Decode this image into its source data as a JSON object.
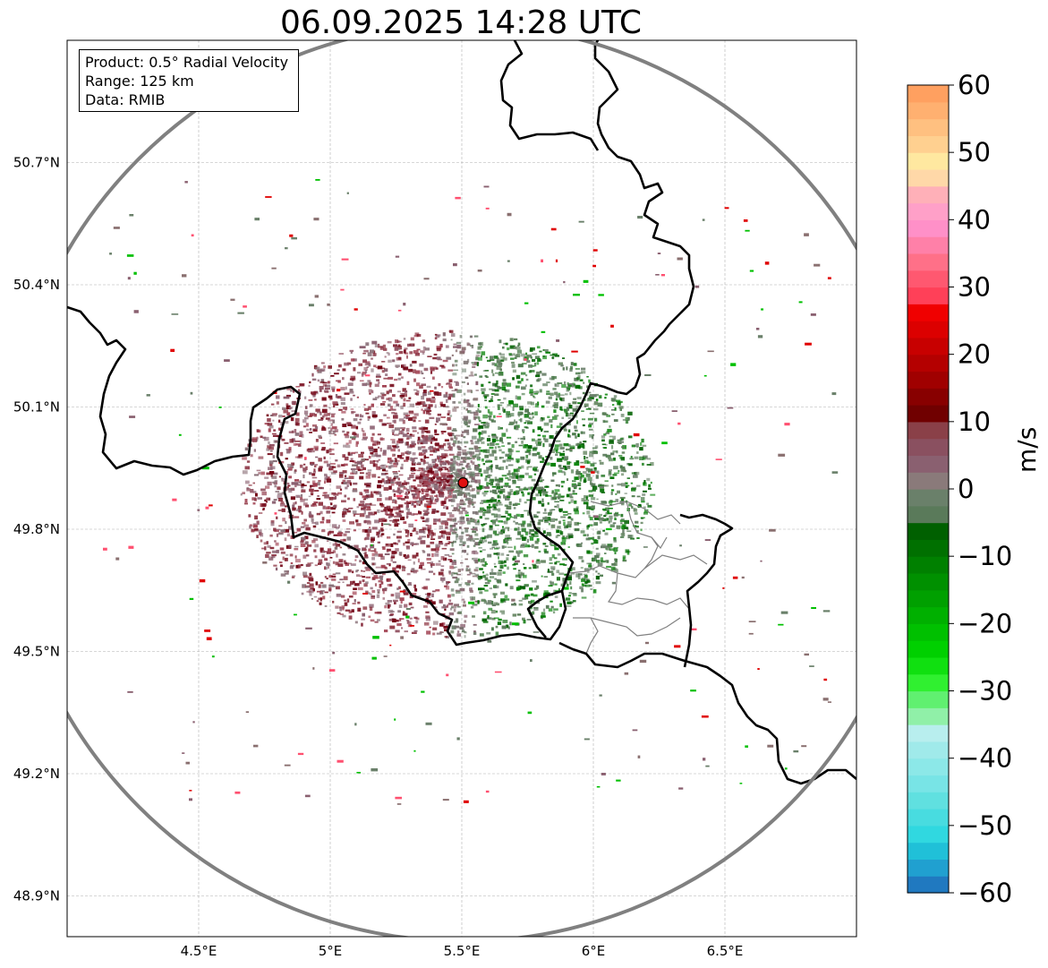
{
  "title": "06.09.2025 14:28 UTC",
  "info": {
    "product": "Product: 0.5° Radial Velocity",
    "range": "Range: 125 km",
    "data": "Data: RMIB"
  },
  "map": {
    "lon_range": [
      4.0,
      7.0
    ],
    "lat_range": [
      48.8,
      51.0
    ],
    "lon_ticks": [
      {
        "value": 4.5,
        "label": "4.5°E"
      },
      {
        "value": 5.0,
        "label": "5°E"
      },
      {
        "value": 5.5,
        "label": "5.5°E"
      },
      {
        "value": 6.0,
        "label": "6°E"
      },
      {
        "value": 6.5,
        "label": "6.5°E"
      }
    ],
    "lat_ticks": [
      {
        "value": 50.7,
        "label": "50.7°N"
      },
      {
        "value": 50.4,
        "label": "50.4°N"
      },
      {
        "value": 50.1,
        "label": "50.1°N"
      },
      {
        "value": 49.8,
        "label": "49.8°N"
      },
      {
        "value": 49.5,
        "label": "49.5°N"
      },
      {
        "value": 49.2,
        "label": "49.2°N"
      },
      {
        "value": 48.9,
        "label": "48.9°N"
      }
    ],
    "radar_site": {
      "lon": 5.505,
      "lat": 49.914
    },
    "range_ring_km": 125,
    "gridlines": true,
    "colors": {
      "ring": "#808080",
      "border": "#000000",
      "admin": "#808080",
      "site": "#e01010"
    }
  },
  "colorbar": {
    "unit": "m/s",
    "min": -60,
    "max": 60,
    "ticks": [
      60,
      50,
      40,
      30,
      20,
      10,
      0,
      -10,
      -20,
      -30,
      -40,
      -50,
      -60
    ],
    "tick_labels": [
      "60",
      "50",
      "40",
      "30",
      "20",
      "10",
      "0",
      "−10",
      "−20",
      "−30",
      "−40",
      "−50",
      "−60"
    ],
    "colors": [
      "#2079c0",
      "#20a0d0",
      "#20c0d8",
      "#30d8e0",
      "#48dce0",
      "#60e0e0",
      "#78e4e6",
      "#8ce8e8",
      "#a0eaea",
      "#b8eeee",
      "#90f0a8",
      "#60f070",
      "#30f030",
      "#10e010",
      "#00d000",
      "#00c000",
      "#00b000",
      "#00a000",
      "#009000",
      "#008000",
      "#007000",
      "#006000",
      "#5a7a5a",
      "#6a806a",
      "#8a7a7a",
      "#8a6070",
      "#8a5060",
      "#8a4048",
      "#700000",
      "#880000",
      "#a00000",
      "#b40000",
      "#c80000",
      "#dc0000",
      "#f00000",
      "#ff4058",
      "#ff5870",
      "#ff7088",
      "#ff80a8",
      "#ff90c8",
      "#ffa0c8",
      "#ffb0b8",
      "#ffd8a8",
      "#ffe8a0",
      "#ffd090",
      "#ffc080",
      "#ffb070",
      "#ffa060"
    ]
  }
}
